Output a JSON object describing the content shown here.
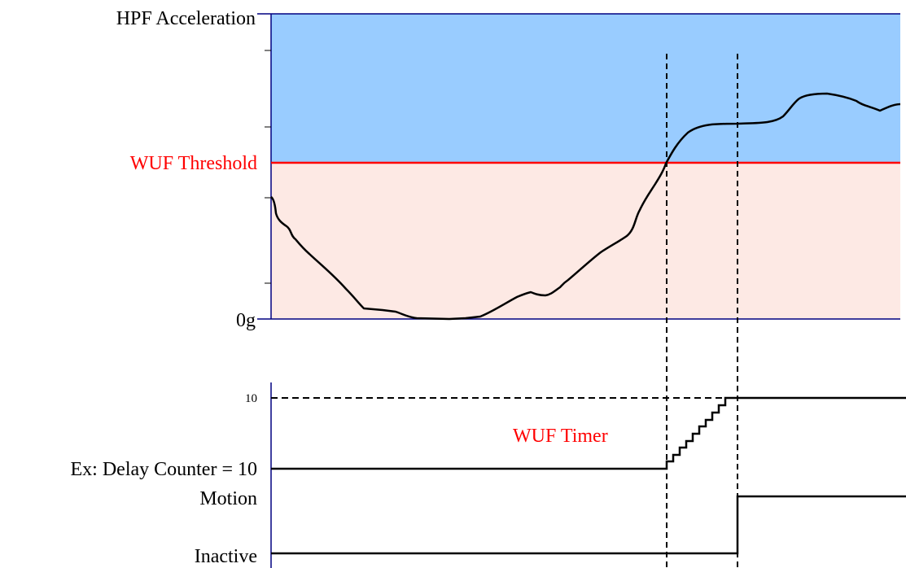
{
  "labels": {
    "y_axis_title": "HPF Acceleration",
    "threshold": "WUF Threshold",
    "zero": "0g",
    "counter_max": "10",
    "timer": "WUF Timer",
    "delay_counter": "Ex: Delay Counter = 10",
    "motion": "Motion",
    "inactive": "Inactive"
  },
  "colors": {
    "above_threshold_fill": "#99ccff",
    "below_threshold_fill": "#fde9e4",
    "threshold_line": "#ff0000",
    "axis": "#000080",
    "timer_text": "#ff0000",
    "signal": "#000000"
  },
  "counter": {
    "start": 0,
    "max": 10,
    "steps": 10
  },
  "events": {
    "threshold_crossing": "counter starts incrementing",
    "counter_reaches_max": "state changes from Inactive to Motion"
  }
}
